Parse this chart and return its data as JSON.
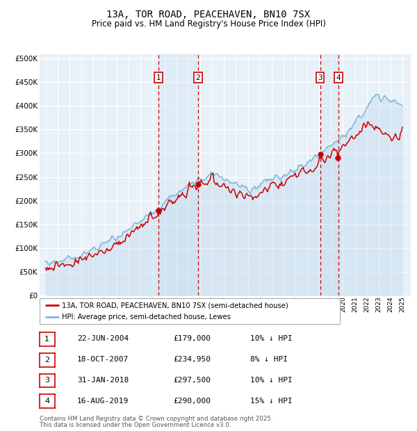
{
  "title": "13A, TOR ROAD, PEACEHAVEN, BN10 7SX",
  "subtitle": "Price paid vs. HM Land Registry's House Price Index (HPI)",
  "legend_line1": "13A, TOR ROAD, PEACEHAVEN, BN10 7SX (semi-detached house)",
  "legend_line2": "HPI: Average price, semi-detached house, Lewes",
  "footer1": "Contains HM Land Registry data © Crown copyright and database right 2025.",
  "footer2": "This data is licensed under the Open Government Licence v3.0.",
  "yticks": [
    0,
    50000,
    100000,
    150000,
    200000,
    250000,
    300000,
    350000,
    400000,
    450000,
    500000
  ],
  "transaction_color": "#cc0000",
  "hpi_color": "#7ab8d9",
  "vline_color": "#cc0000",
  "annotations": [
    {
      "label": "1",
      "year": 2004.47,
      "price": 179000,
      "date": "22-JUN-2004",
      "price_str": "£179,000",
      "hpi_pct": "10% ↓ HPI"
    },
    {
      "label": "2",
      "year": 2007.8,
      "price": 234950,
      "date": "18-OCT-2007",
      "price_str": "£234,950",
      "hpi_pct": "8% ↓ HPI"
    },
    {
      "label": "3",
      "year": 2018.08,
      "price": 297500,
      "date": "31-JAN-2018",
      "price_str": "£297,500",
      "hpi_pct": "10% ↓ HPI"
    },
    {
      "label": "4",
      "year": 2019.62,
      "price": 290000,
      "date": "16-AUG-2019",
      "price_str": "£290,000",
      "hpi_pct": "15% ↓ HPI"
    }
  ],
  "x_start_year": 1995,
  "x_end_year": 2025,
  "background_color": "#ffffff",
  "plot_bg_color": "#e8f0f8"
}
